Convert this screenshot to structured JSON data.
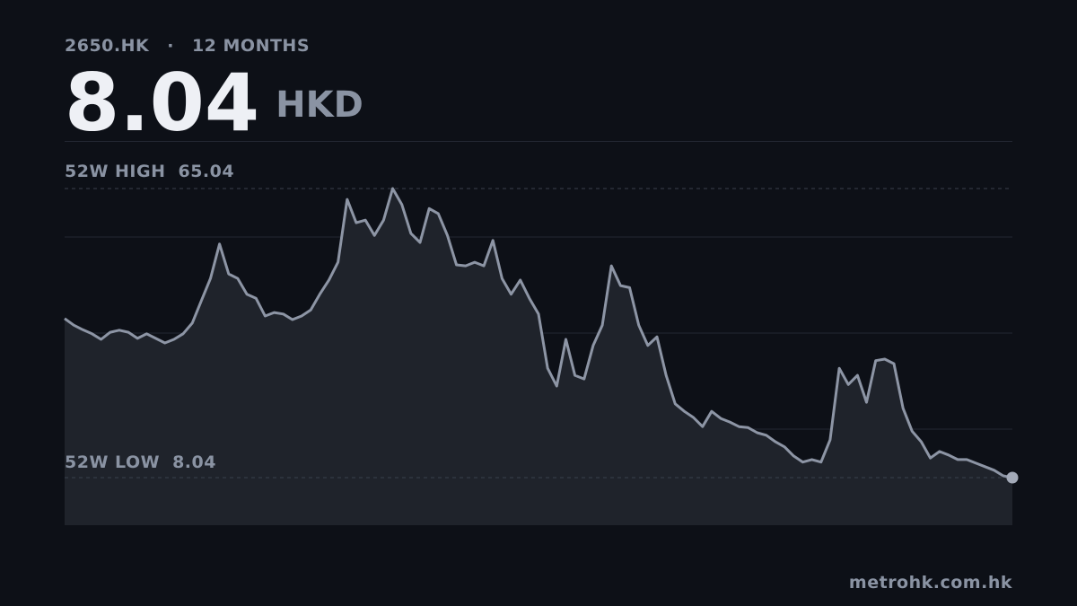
{
  "chart_data": {
    "type": "line",
    "ticker": "2650.HK",
    "separator": "·",
    "period": "12 MONTHS",
    "price": 8.04,
    "currency": "HKD",
    "high": {
      "label": "52W HIGH",
      "value": 65.04
    },
    "low": {
      "label": "52W LOW",
      "value": 8.04
    },
    "source": "metrohk.com.hk",
    "color": "#8d95a5",
    "area_color": "#1f232b",
    "ylim": [
      -1.34,
      74.42
    ],
    "values": [
      39.4,
      38.1,
      37.2,
      36.4,
      35.3,
      36.7,
      37.1,
      36.7,
      35.5,
      36.4,
      35.5,
      34.6,
      35.3,
      36.4,
      38.5,
      42.9,
      47.3,
      54.1,
      48.2,
      47.3,
      44.2,
      43.4,
      39.9,
      40.6,
      40.3,
      39.2,
      39.9,
      41.1,
      44.2,
      47.0,
      50.5,
      62.9,
      58.3,
      58.8,
      55.8,
      58.8,
      65.04,
      61.9,
      56.2,
      54.4,
      61.1,
      60.1,
      55.8,
      50.0,
      49.8,
      50.5,
      49.8,
      54.8,
      47.3,
      44.2,
      47.0,
      43.4,
      40.3,
      29.6,
      26.1,
      35.3,
      28.2,
      27.5,
      34.1,
      38.1,
      49.8,
      45.9,
      45.5,
      38.1,
      34.1,
      35.8,
      28.2,
      22.6,
      21.1,
      19.9,
      18.1,
      21.1,
      19.7,
      19.0,
      18.1,
      17.9,
      16.9,
      16.4,
      15.1,
      14.1,
      12.3,
      11.1,
      11.6,
      11.1,
      15.5,
      29.6,
      26.4,
      28.2,
      22.9,
      31.1,
      31.4,
      30.5,
      21.7,
      17.2,
      15.1,
      11.9,
      13.2,
      12.5,
      11.6,
      11.6,
      10.9,
      10.2,
      9.5,
      8.4,
      8.04
    ]
  }
}
